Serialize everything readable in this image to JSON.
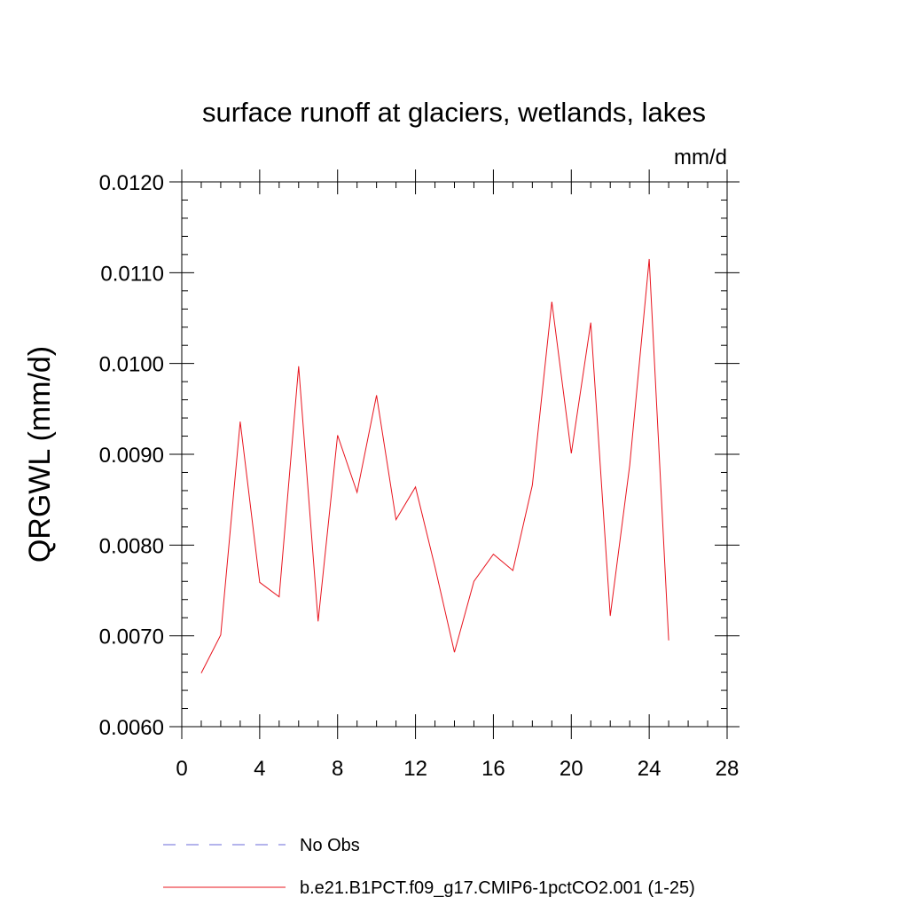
{
  "chart_data": {
    "type": "line",
    "title": "surface runoff at glaciers, wetlands, lakes",
    "units_label": "mm/d",
    "ylabel": "QRGWL  (mm/d)",
    "xlabel": "",
    "xlim": [
      0,
      28
    ],
    "ylim": [
      0.006,
      0.012
    ],
    "x_ticks": [
      0,
      4,
      8,
      12,
      16,
      20,
      24,
      28
    ],
    "x_tick_labels": [
      "0",
      "4",
      "8",
      "12",
      "16",
      "20",
      "24",
      "28"
    ],
    "y_ticks": [
      0.006,
      0.007,
      0.008,
      0.009,
      0.01,
      0.011,
      0.012
    ],
    "y_tick_labels": [
      "0.0060",
      "0.0070",
      "0.0080",
      "0.0090",
      "0.0100",
      "0.0110",
      "0.0120"
    ],
    "x_minor_step": 1,
    "y_minor_step": 0.0002,
    "grid": false,
    "legend_position": "bottom",
    "series": [
      {
        "name": "b.e21.B1PCT.f09_g17.CMIP6-1pctCO2.001 (1-25)",
        "color": "#e8141e",
        "style": "solid",
        "x": [
          1,
          2,
          3,
          4,
          5,
          6,
          7,
          8,
          9,
          10,
          11,
          12,
          13,
          14,
          15,
          16,
          17,
          18,
          19,
          20,
          21,
          22,
          23,
          24,
          25
        ],
        "y": [
          0.00659,
          0.00701,
          0.00936,
          0.00759,
          0.00743,
          0.00997,
          0.00716,
          0.00921,
          0.00858,
          0.00965,
          0.00828,
          0.00864,
          0.00776,
          0.00682,
          0.0076,
          0.0079,
          0.00772,
          0.00866,
          0.01068,
          0.00901,
          0.01045,
          0.00722,
          0.00888,
          0.01115,
          0.00695
        ]
      }
    ],
    "legend": [
      {
        "label": "No Obs",
        "color": "#6a6ad8",
        "style": "dashed"
      },
      {
        "label": "b.e21.B1PCT.f09_g17.CMIP6-1pctCO2.001 (1-25)",
        "color": "#e8141e",
        "style": "solid"
      }
    ]
  }
}
